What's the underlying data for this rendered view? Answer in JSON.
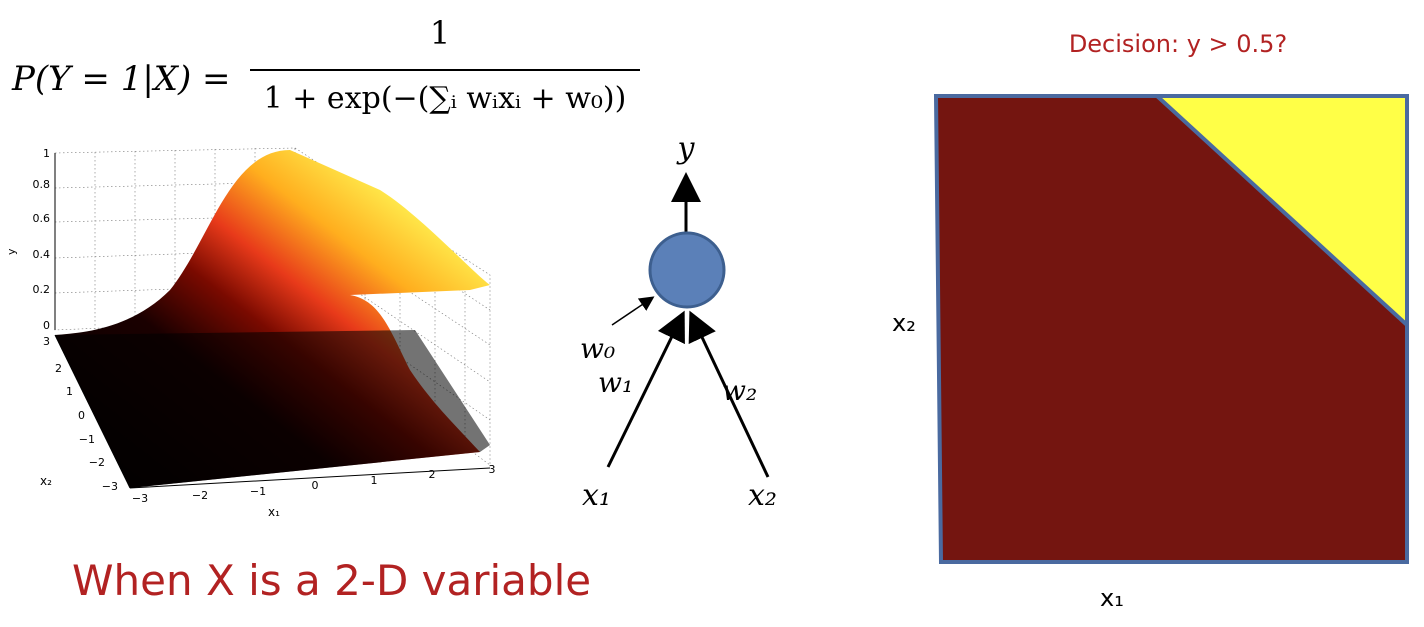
{
  "formula": {
    "lhs": "P(Y = 1|X) =",
    "numerator": "1",
    "denominator": "1 + exp(−(∑ᵢ wᵢxᵢ + w₀))"
  },
  "caption": "When X is a 2-D variable",
  "decision": {
    "title": "Decision: y > 0.5?",
    "xlabel": "x₁",
    "ylabel": "x₂"
  },
  "neuron": {
    "output": "y",
    "bias": "w₀",
    "w1": "w₁",
    "w2": "w₂",
    "x1": "x₁",
    "x2": "x₂"
  },
  "surface_plot": {
    "y_axis_label": "y",
    "x1_axis_label": "x₁",
    "x2_axis_label": "x₂",
    "y_ticks": [
      "0",
      "0.2",
      "0.4",
      "0.6",
      "0.8",
      "1"
    ],
    "x2_ticks": [
      "3",
      "2",
      "1",
      "0",
      "−1",
      "−2",
      "−3"
    ],
    "x1_ticks": [
      "−3",
      "−2",
      "−1",
      "0",
      "1",
      "2",
      "3"
    ]
  },
  "colors": {
    "caption": "#b22222",
    "title": "#b22222",
    "neuron_fill": "#5b80b8",
    "neuron_stroke": "#3d5f8f",
    "region_low": "#741510",
    "region_high": "#ffff47",
    "region_border": "#4a6aa0"
  }
}
